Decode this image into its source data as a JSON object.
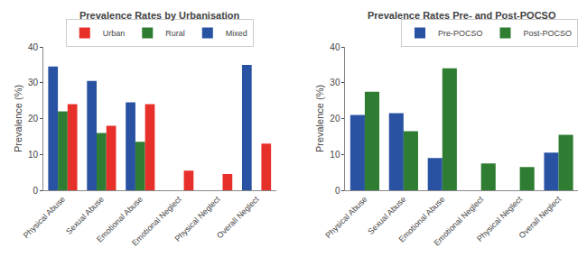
{
  "chart_data": [
    {
      "type": "bar",
      "title": "Prevalence Rates by Urbanisation",
      "categories": [
        "Physical Abuse",
        "Sexual Abuse",
        "Emotional Abuse",
        "Emotional Neglect",
        "Physical Neglect",
        "Overall Neglect"
      ],
      "series": [
        {
          "name": "Mixed",
          "color": "#2952a3",
          "values": [
            34.5,
            30.5,
            24.5,
            0,
            0,
            35
          ]
        },
        {
          "name": "Rural",
          "color": "#2e7d32",
          "values": [
            22,
            16,
            13.5,
            0,
            0,
            0
          ]
        },
        {
          "name": "Urban",
          "color": "#e8302a",
          "values": [
            24,
            18,
            24,
            5.5,
            4.5,
            13
          ]
        }
      ],
      "ylabel": "Prevalence (%)",
      "ylim": [
        0,
        40
      ],
      "yticks": [
        0,
        10,
        20,
        30,
        40
      ],
      "grid": false,
      "legend": "upper center"
    },
    {
      "type": "bar",
      "title": "Prevalence Rates Pre- and Post-POCSO",
      "categories": [
        "Physical Abuse",
        "Sexual Abuse",
        "Emotional Abuse",
        "Emotional Neglect",
        "Physical Neglect",
        "Overall Neglect"
      ],
      "series": [
        {
          "name": "Pre-POCSO",
          "color": "#2952a3",
          "values": [
            21,
            21.5,
            9,
            0,
            0,
            10.5
          ]
        },
        {
          "name": "Post-POCSO",
          "color": "#2e7d32",
          "values": [
            27.5,
            16.5,
            34,
            7.5,
            6.5,
            15.5
          ]
        }
      ],
      "ylabel": "Prevalence (%)",
      "ylim": [
        0,
        40
      ],
      "yticks": [
        0,
        10,
        20,
        30,
        40
      ],
      "grid": false,
      "legend": "upper right"
    }
  ]
}
